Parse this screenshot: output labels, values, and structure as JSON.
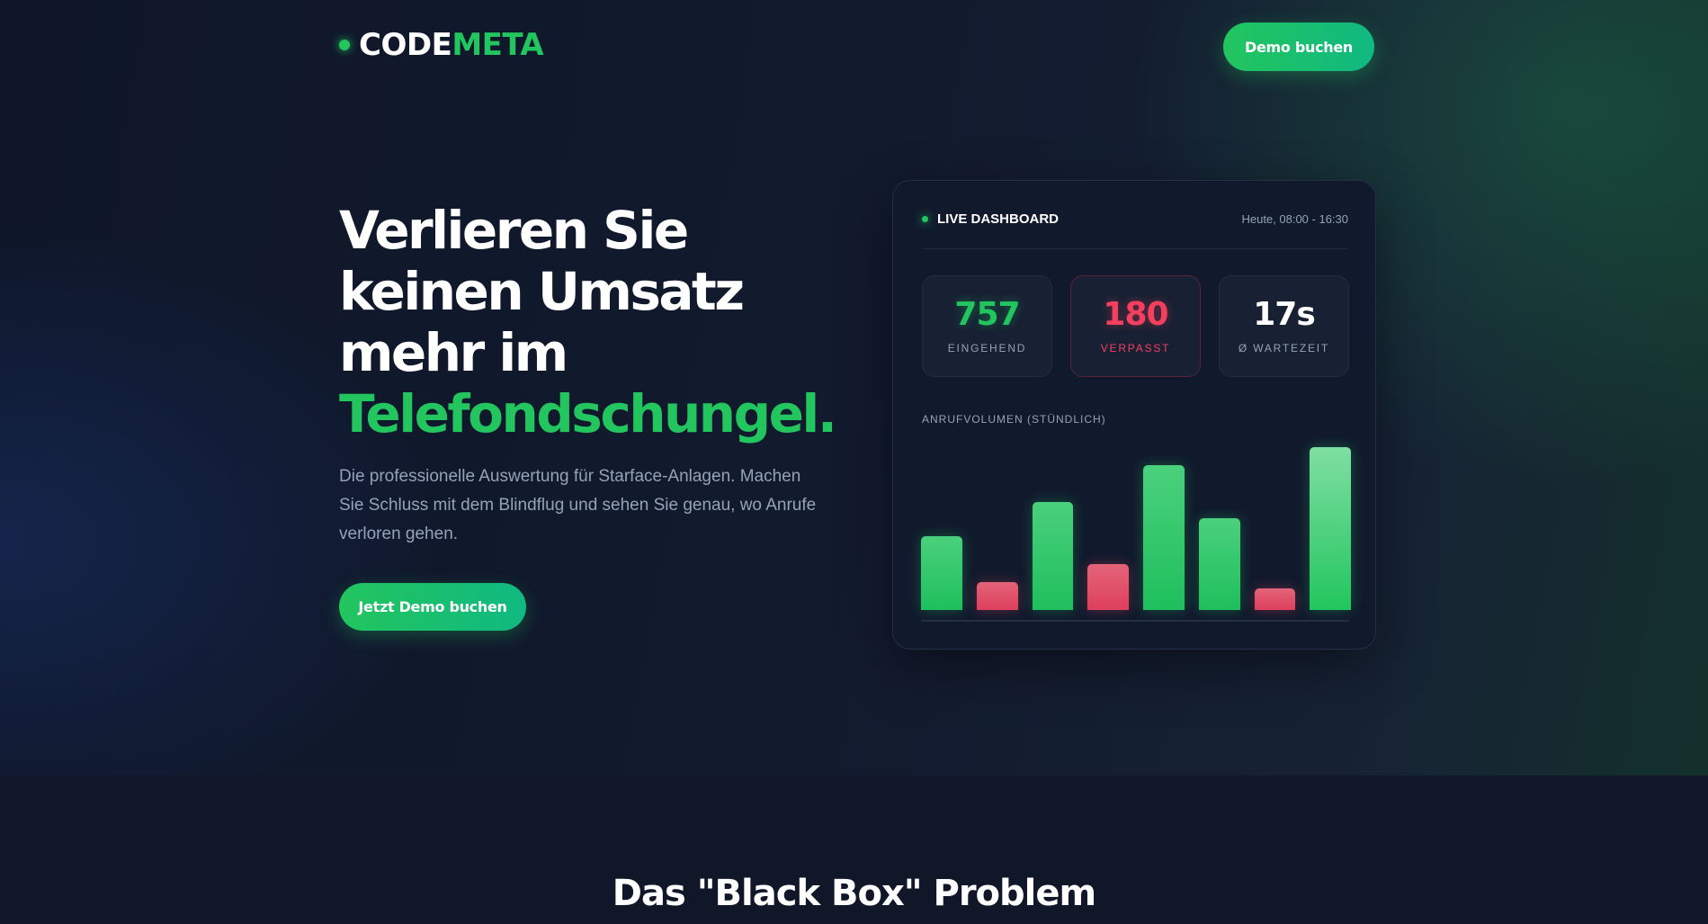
{
  "brand": {
    "part1": "CODE",
    "part2": "META",
    "accent": "#22c55e"
  },
  "nav": {
    "demo_button": "Demo buchen"
  },
  "hero": {
    "title_lines": [
      "Verlieren Sie",
      "keinen Umsatz",
      "mehr im"
    ],
    "title_highlight": "Telefondschungel.",
    "subtitle": "Die professionelle Auswertung für Starface-Anlagen. Machen Sie Schluss mit dem Blindflug und sehen Sie genau, wo Anrufe verloren gehen.",
    "cta": "Jetzt Demo buchen"
  },
  "dashboard": {
    "title": "LIVE DASHBOARD",
    "range": "Heute, 08:00 - 16:30",
    "stats": [
      {
        "value": "757",
        "label": "EINGEHEND",
        "color": "#22c55e"
      },
      {
        "value": "180",
        "label": "VERPASST",
        "color": "#f43f5e"
      },
      {
        "value": "17s",
        "label": "Ø WARTEZEIT",
        "color": "#ffffff"
      }
    ],
    "chart_title": "ANRUFVOLUMEN (STÜNDLICH)"
  },
  "chart_data": {
    "type": "bar",
    "title": "ANRUFVOLUMEN (STÜNDLICH)",
    "value_scale": "relative (% of tallest bar, no axis printed)",
    "values": [
      45,
      17,
      66,
      28,
      89,
      56,
      13,
      100
    ],
    "kinds": [
      "incoming",
      "missed",
      "incoming",
      "missed",
      "incoming",
      "incoming",
      "missed",
      "incoming"
    ],
    "colors": {
      "incoming": "#22c55e",
      "missed": "#e11d48"
    }
  },
  "section2": {
    "title": "Das \"Black Box\" Problem"
  }
}
